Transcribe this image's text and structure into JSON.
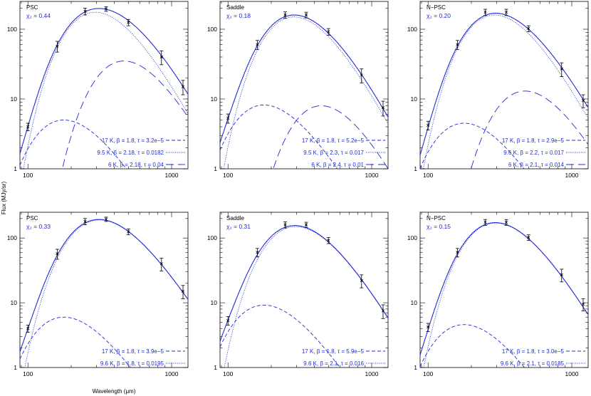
{
  "chart_data": {
    "type": "line",
    "figure": {
      "ylabel": "Flux (MJy/sr)",
      "xlabel": "Wavelength (μm)",
      "xlim": [
        88,
        1300
      ],
      "ylim": [
        1,
        250
      ],
      "xscale": "log",
      "yscale": "log",
      "xticks": [
        100,
        1000
      ],
      "xtick_labels": [
        "100",
        "1000"
      ],
      "yticks": [
        1,
        10,
        100
      ],
      "ytick_labels": [
        "1",
        "10",
        "100"
      ],
      "colors": {
        "model": "#1f2bd6",
        "points": "#000000"
      }
    },
    "panels": [
      {
        "title": "PSC",
        "chi_label": "χ₂ = 0.44",
        "points": [
          {
            "x": 100,
            "y": 4.0,
            "err": 0.5
          },
          {
            "x": 160,
            "y": 57,
            "err": 10
          },
          {
            "x": 250,
            "y": 180,
            "err": 20
          },
          {
            "x": 350,
            "y": 195,
            "err": 15
          },
          {
            "x": 500,
            "y": 125,
            "err": 13
          },
          {
            "x": 850,
            "y": 40,
            "err": 9
          },
          {
            "x": 1200,
            "y": 15,
            "err": 3.5
          }
        ],
        "components": [
          {
            "label": "17 K, β = 1.8, τ = 3.2e−5",
            "T": 17,
            "beta": 1.8,
            "peak": 5,
            "style": "dashed-short"
          },
          {
            "label": "9.5 K, β = 2.18, τ = 0.0182",
            "T": 9.5,
            "beta": 2.18,
            "peak": 175,
            "style": "dotted"
          },
          {
            "label": "6 K, β = 2.18, τ = 0.04",
            "T": 6,
            "beta": 2.18,
            "peak": 35,
            "style": "dashed-long"
          }
        ]
      },
      {
        "title": "Saddle",
        "chi_label": "χ₂ = 0.18",
        "points": [
          {
            "x": 100,
            "y": 5.3,
            "err": 0.8
          },
          {
            "x": 160,
            "y": 60,
            "err": 9
          },
          {
            "x": 250,
            "y": 160,
            "err": 17
          },
          {
            "x": 350,
            "y": 160,
            "err": 15
          },
          {
            "x": 500,
            "y": 92,
            "err": 10
          },
          {
            "x": 850,
            "y": 22,
            "err": 5
          },
          {
            "x": 1200,
            "y": 7.5,
            "err": 1.8
          }
        ],
        "components": [
          {
            "label": "17 K, β = 1.8, τ = 5.2e−5",
            "T": 17,
            "beta": 1.8,
            "peak": 8.2,
            "style": "dashed-short"
          },
          {
            "label": "9.5 K, β = 2.3, τ = 0.017",
            "T": 9.5,
            "beta": 2.3,
            "peak": 150,
            "style": "dotted"
          },
          {
            "label": "6 K, β = 2.4, τ = 0.01",
            "T": 6,
            "beta": 2.4,
            "peak": 8,
            "style": "dashed-long"
          }
        ]
      },
      {
        "title": "N−PSC",
        "chi_label": "χ₂ = 0.20",
        "points": [
          {
            "x": 100,
            "y": 4.2,
            "err": 0.6
          },
          {
            "x": 160,
            "y": 60,
            "err": 9
          },
          {
            "x": 250,
            "y": 175,
            "err": 18
          },
          {
            "x": 350,
            "y": 175,
            "err": 18
          },
          {
            "x": 500,
            "y": 102,
            "err": 10
          },
          {
            "x": 850,
            "y": 27,
            "err": 6
          },
          {
            "x": 1200,
            "y": 9.5,
            "err": 2
          }
        ],
        "components": [
          {
            "label": "17 K, β = 1.8, τ = 2.9e−5",
            "T": 17,
            "beta": 1.8,
            "peak": 4.5,
            "style": "dashed-short"
          },
          {
            "label": "9.6 K, β = 2.2, τ = 0.017",
            "T": 9.6,
            "beta": 2.2,
            "peak": 160,
            "style": "dotted"
          },
          {
            "label": "6 K, β = 2.1, τ = 0.014",
            "T": 6,
            "beta": 2.1,
            "peak": 13,
            "style": "dashed-long"
          }
        ]
      },
      {
        "title": "PSC",
        "chi_label": "χ₂ = 0.33",
        "points": [
          {
            "x": 100,
            "y": 4.0,
            "err": 0.5
          },
          {
            "x": 160,
            "y": 57,
            "err": 10
          },
          {
            "x": 250,
            "y": 180,
            "err": 20
          },
          {
            "x": 350,
            "y": 195,
            "err": 15
          },
          {
            "x": 500,
            "y": 125,
            "err": 13
          },
          {
            "x": 850,
            "y": 40,
            "err": 9
          },
          {
            "x": 1200,
            "y": 15,
            "err": 3.5
          }
        ],
        "components": [
          {
            "label": "17 K, β = 1.8, τ = 3.9e−5",
            "T": 17,
            "beta": 1.8,
            "peak": 6,
            "style": "dashed-short"
          },
          {
            "label": "9.6 K, β = 1.8, τ = 0.0195",
            "T": 9.6,
            "beta": 1.8,
            "peak": 190,
            "style": "dotted"
          }
        ]
      },
      {
        "title": "Saddle",
        "chi_label": "χ₂ = 0.31",
        "points": [
          {
            "x": 100,
            "y": 5.3,
            "err": 0.8
          },
          {
            "x": 160,
            "y": 60,
            "err": 9
          },
          {
            "x": 250,
            "y": 160,
            "err": 17
          },
          {
            "x": 350,
            "y": 160,
            "err": 15
          },
          {
            "x": 500,
            "y": 92,
            "err": 10
          },
          {
            "x": 850,
            "y": 22,
            "err": 5
          },
          {
            "x": 1200,
            "y": 7.5,
            "err": 1.8
          }
        ],
        "components": [
          {
            "label": "17 K, β = 1.8, τ = 5.9e−5",
            "T": 17,
            "beta": 1.8,
            "peak": 9.2,
            "style": "dashed-short"
          },
          {
            "label": "9.6 K, β = 2.1, τ = 0.016",
            "T": 9.6,
            "beta": 2.1,
            "peak": 150,
            "style": "dotted"
          }
        ]
      },
      {
        "title": "N−PSC",
        "chi_label": "χ₂ = 0.15",
        "points": [
          {
            "x": 100,
            "y": 4.2,
            "err": 0.6
          },
          {
            "x": 160,
            "y": 60,
            "err": 9
          },
          {
            "x": 250,
            "y": 175,
            "err": 18
          },
          {
            "x": 350,
            "y": 175,
            "err": 18
          },
          {
            "x": 500,
            "y": 102,
            "err": 10
          },
          {
            "x": 850,
            "y": 27,
            "err": 6
          },
          {
            "x": 1200,
            "y": 9.5,
            "err": 2
          }
        ],
        "components": [
          {
            "label": "17 K, β = 1.8, τ = 3.0e−5",
            "T": 17,
            "beta": 1.8,
            "peak": 4.6,
            "style": "dashed-short"
          },
          {
            "label": "9.6 K, β = 2.1, τ = 0.0185",
            "T": 9.6,
            "beta": 2.1,
            "peak": 170,
            "style": "dotted"
          }
        ]
      }
    ]
  }
}
